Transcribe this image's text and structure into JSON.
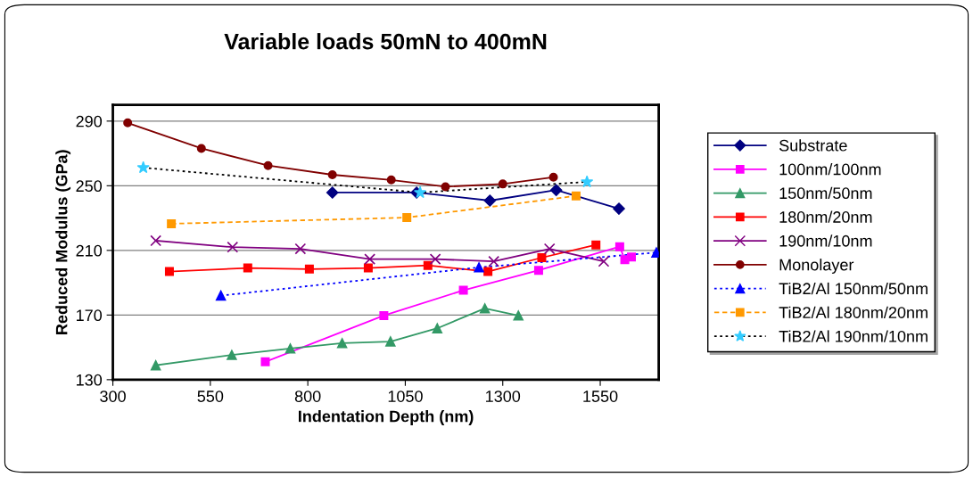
{
  "chart_data": {
    "type": "line",
    "title": "Variable loads 50mN to 400mN",
    "xlabel": "Indentation Depth (nm)",
    "ylabel": "Reduced Modulus (GPa)",
    "xlim": [
      300,
      1700
    ],
    "xticks": [
      300,
      550,
      800,
      1050,
      1300,
      1550
    ],
    "ylim": [
      130,
      300
    ],
    "yticks": [
      130,
      170,
      210,
      250,
      290
    ],
    "grid": "y",
    "legend": "right",
    "series": [
      {
        "name": "Substrate",
        "color": "#000080",
        "marker": "diamond",
        "line_style": "solid",
        "x": [
          863,
          1079,
          1267,
          1437,
          1598
        ],
        "values": [
          245.8,
          245.8,
          240.8,
          247.3,
          235.8
        ]
      },
      {
        "name": "100nm/100nm",
        "color": "#ff00ff",
        "marker": "square",
        "line_style": "solid",
        "x": [
          691,
          995,
          1199,
          1392,
          1600,
          1613,
          1630
        ],
        "values": [
          141.1,
          169.7,
          185.3,
          197.7,
          212.3,
          204.3,
          205.9
        ]
      },
      {
        "name": "150nm/50nm",
        "color": "#339966",
        "marker": "triangle",
        "line_style": "solid",
        "x": [
          410,
          605,
          755,
          888,
          1012,
          1132,
          1254,
          1340
        ],
        "values": [
          138.9,
          145.3,
          149.3,
          152.6,
          153.6,
          161.8,
          174.1,
          169.7
        ]
      },
      {
        "name": "180nm/20nm",
        "color": "#ff0000",
        "marker": "square",
        "line_style": "solid",
        "x": [
          445,
          646,
          804,
          955,
          1108,
          1262,
          1400,
          1539
        ],
        "values": [
          196.9,
          199.1,
          198.4,
          199.1,
          200.7,
          196.9,
          205.5,
          213.4
        ]
      },
      {
        "name": "190nm/10nm",
        "color": "#800080",
        "marker": "cross",
        "line_style": "solid",
        "x": [
          410,
          607,
          781,
          959,
          1127,
          1277,
          1420,
          1559
        ],
        "values": [
          216.0,
          212.0,
          211.0,
          204.6,
          204.6,
          203.2,
          211.0,
          203.2
        ]
      },
      {
        "name": "Monolayer",
        "color": "#800000",
        "marker": "circle",
        "line_style": "solid",
        "x": [
          338,
          527,
          698,
          863,
          1014,
          1153,
          1300,
          1430
        ],
        "values": [
          288.9,
          273.1,
          262.5,
          256.8,
          253.6,
          249.4,
          251.1,
          255.3
        ]
      },
      {
        "name": "TiB2/Al 150nm/50nm",
        "color": "#0000ff",
        "marker": "triangle",
        "line_style": "dotted",
        "x": [
          577,
          1239,
          1694
        ],
        "values": [
          182.0,
          199.5,
          208.7
        ]
      },
      {
        "name": "TiB2/Al 180nm/20nm",
        "color": "#ff9900",
        "marker": "square",
        "line_style": "dashed",
        "x": [
          450,
          1054,
          1488
        ],
        "values": [
          226.5,
          230.3,
          243.7
        ]
      },
      {
        "name": "TiB2/Al 190nm/10nm",
        "color": "#000000",
        "colors": [
          "#33ccff",
          "#33ccff",
          "#33ccff"
        ],
        "marker": "star",
        "line_style": "dotted",
        "x": [
          378,
          1088,
          1516
        ],
        "values": [
          261.2,
          245.8,
          252.4
        ]
      }
    ]
  }
}
